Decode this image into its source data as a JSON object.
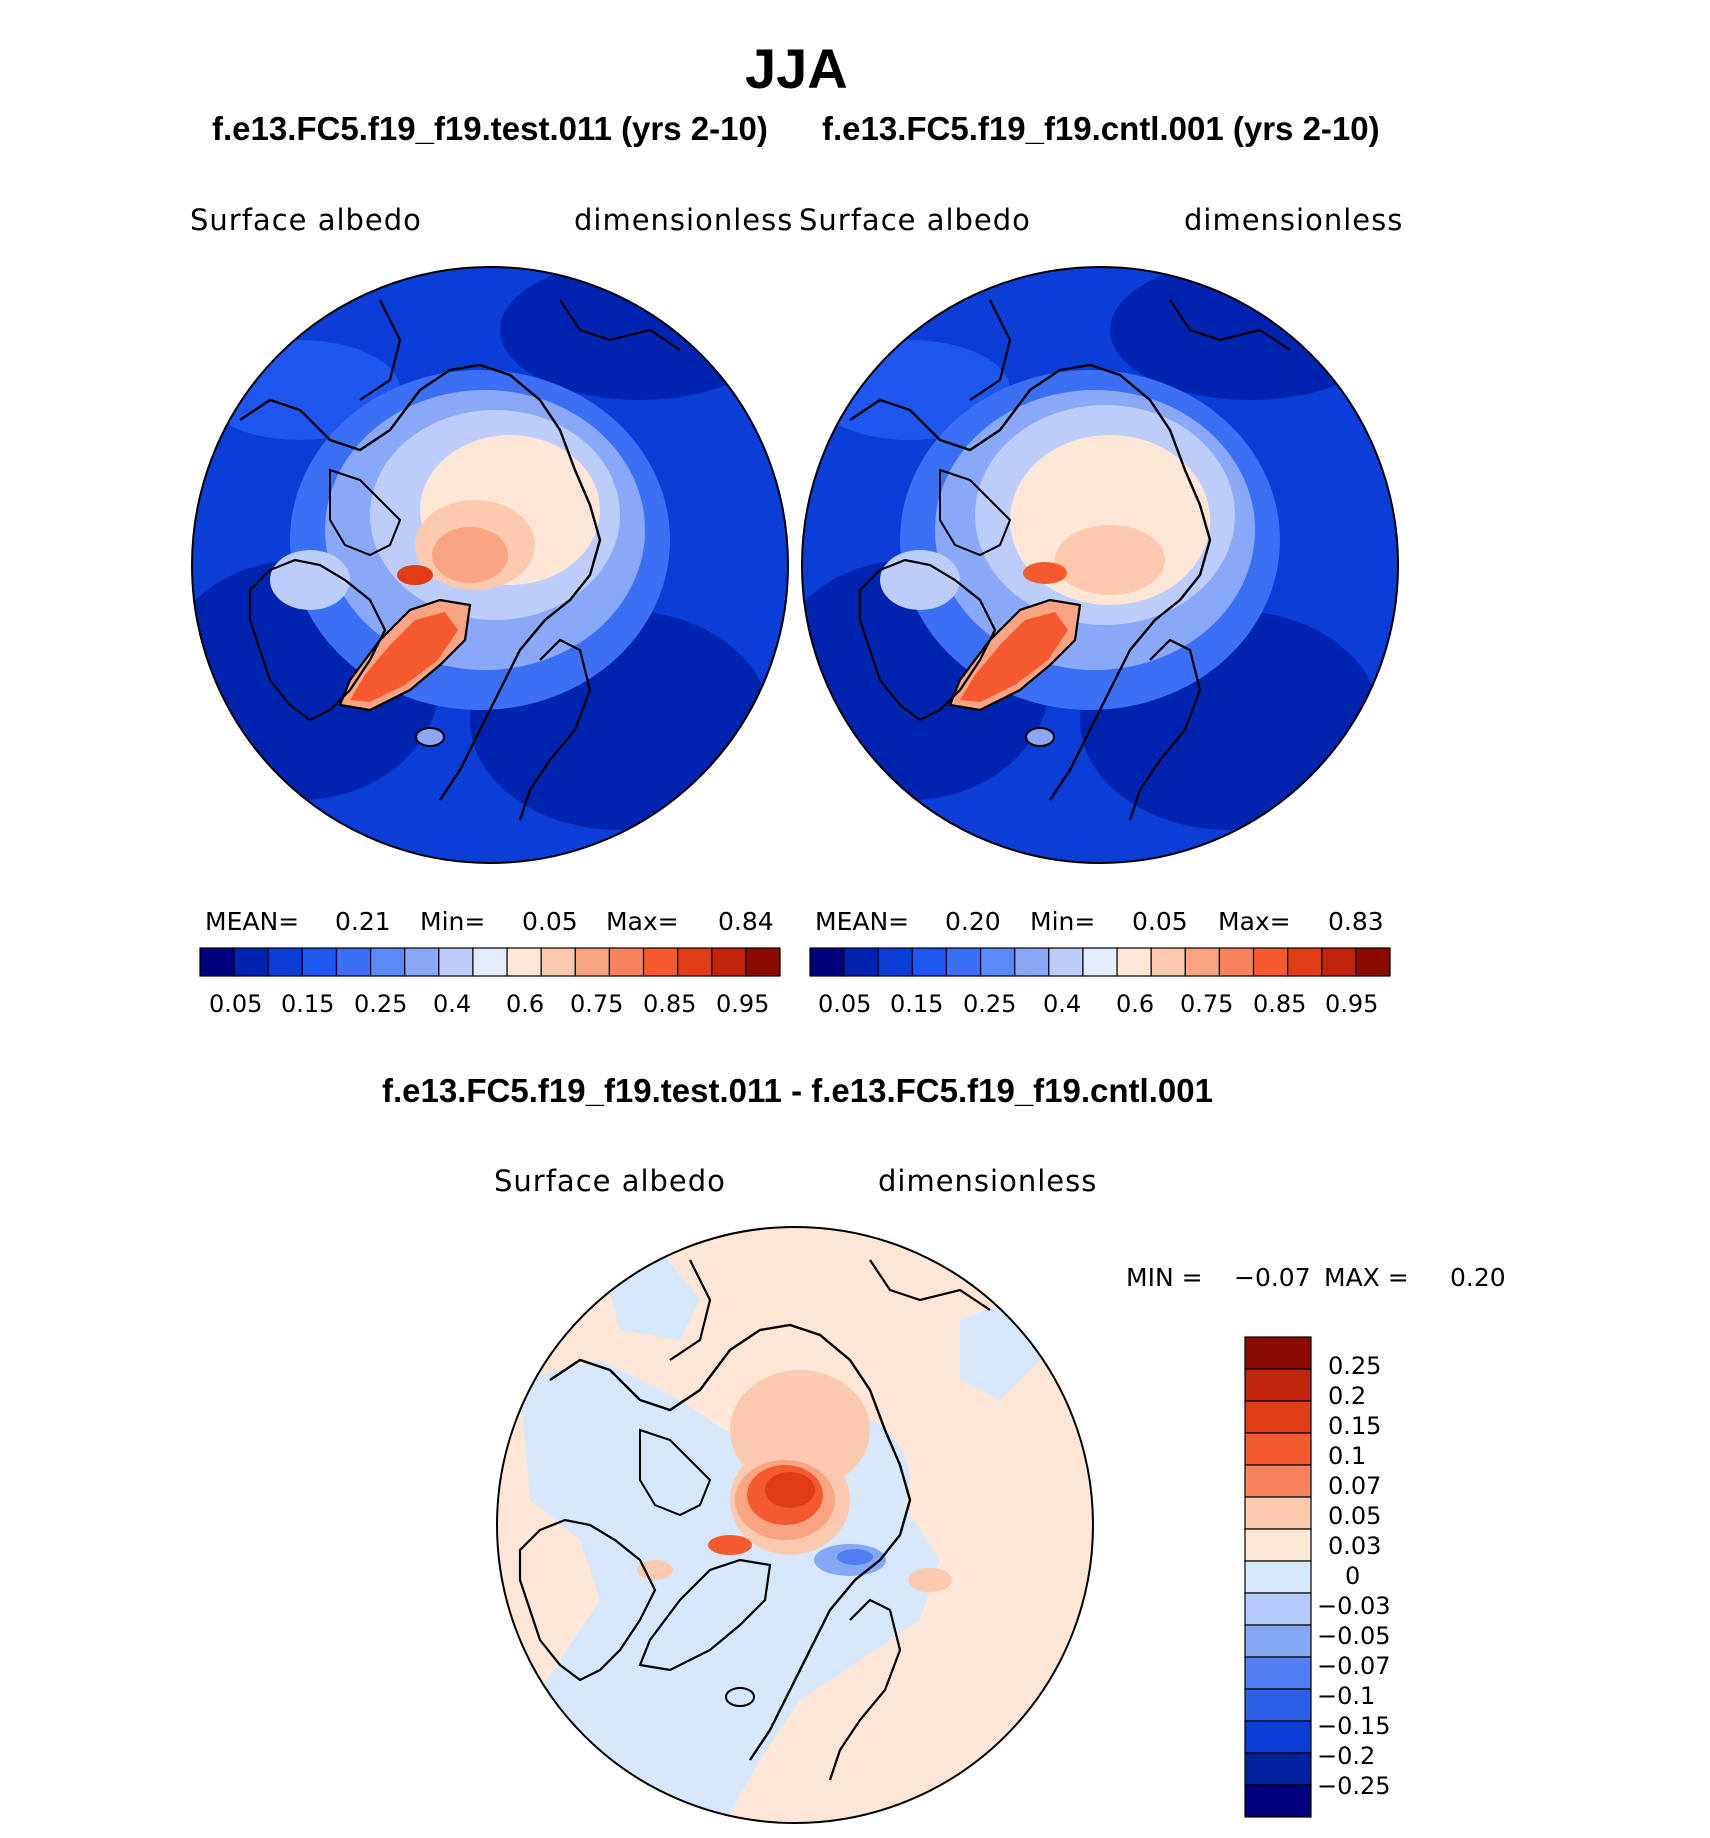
{
  "title": "JJA",
  "colors": {
    "seq": [
      "#00007f",
      "#0024b0",
      "#0a3ed6",
      "#1e56f0",
      "#3c70f4",
      "#5a8af6",
      "#8aa8f8",
      "#bccdfa",
      "#e3ecfb",
      "#fde6d6",
      "#fbcaae",
      "#f9a584",
      "#f7835c",
      "#f55a2e",
      "#e03c16",
      "#c0240a",
      "#8c0b00"
    ],
    "diff": [
      "#8c0b00",
      "#c0240a",
      "#e03c16",
      "#f55a2e",
      "#f7835c",
      "#fbcaae",
      "#fde6d6",
      "#d6e7fb",
      "#b5cbf9",
      "#84a8f6",
      "#4f7ff2",
      "#2a5ee8",
      "#0a3ed6",
      "#0024a0",
      "#00007f"
    ]
  },
  "panels": [
    {
      "title": "f.e13.FC5.f19_f19.test.011 (yrs 2-10)",
      "variable": "Surface  albedo",
      "units": "dimensionless",
      "stats": {
        "mean_label": "MEAN=",
        "mean": "0.21",
        "min_label": "Min=",
        "min": "0.05",
        "max_label": "Max=",
        "max": "0.84"
      },
      "ticks": [
        "0.05",
        "0.15",
        "0.25",
        "0.4",
        "0.6",
        "0.75",
        "0.85",
        "0.95"
      ]
    },
    {
      "title": "f.e13.FC5.f19_f19.cntl.001 (yrs 2-10)",
      "variable": "Surface  albedo",
      "units": "dimensionless",
      "stats": {
        "mean_label": "MEAN=",
        "mean": "0.20",
        "min_label": "Min=",
        "min": "0.05",
        "max_label": "Max=",
        "max": "0.83"
      },
      "ticks": [
        "0.05",
        "0.15",
        "0.25",
        "0.4",
        "0.6",
        "0.75",
        "0.85",
        "0.95"
      ]
    }
  ],
  "diff_panel": {
    "title": "f.e13.FC5.f19_f19.test.011 - f.e13.FC5.f19_f19.cntl.001",
    "variable": "Surface  albedo",
    "units": "dimensionless",
    "stats": {
      "min_label": "MIN =",
      "min": "−0.07",
      "max_label": "MAX =",
      "max": "0.20"
    },
    "ticks": [
      "0.25",
      "0.2",
      "0.15",
      "0.1",
      "0.07",
      "0.05",
      "0.03",
      "0",
      "−0.03",
      "−0.05",
      "−0.07",
      "−0.1",
      "−0.15",
      "−0.2",
      "−0.25"
    ]
  }
}
